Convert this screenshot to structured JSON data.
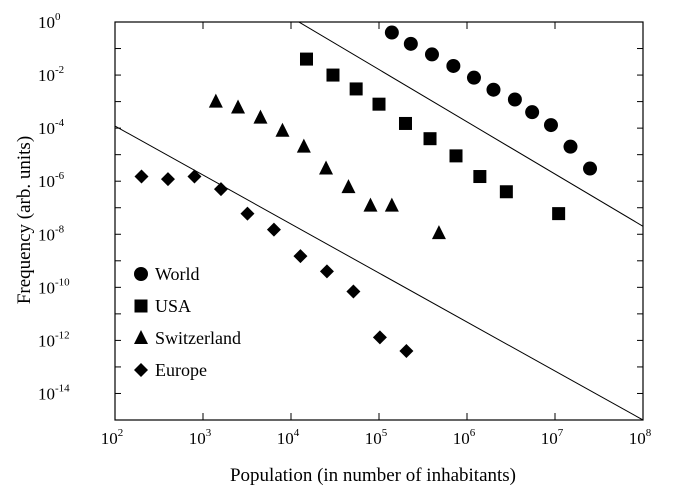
{
  "chart_data": {
    "type": "scatter",
    "title": "",
    "xlabel": "Population (in number of inhabitants)",
    "ylabel": "Frequency (arb. units)",
    "x_scale": "log",
    "y_scale": "log",
    "xlim": [
      100,
      100000000
    ],
    "ylim": [
      1e-15,
      1
    ],
    "x_ticks": [
      {
        "base": "10",
        "exp": "2"
      },
      {
        "base": "10",
        "exp": "3"
      },
      {
        "base": "10",
        "exp": "4"
      },
      {
        "base": "10",
        "exp": "5"
      },
      {
        "base": "10",
        "exp": "6"
      },
      {
        "base": "10",
        "exp": "7"
      },
      {
        "base": "10",
        "exp": "8"
      }
    ],
    "y_ticks": [
      {
        "base": "10",
        "exp": "0"
      },
      {
        "base": "10",
        "exp": "-2"
      },
      {
        "base": "10",
        "exp": "-4"
      },
      {
        "base": "10",
        "exp": "-6"
      },
      {
        "base": "10",
        "exp": "-8"
      },
      {
        "base": "10",
        "exp": "-10"
      },
      {
        "base": "10",
        "exp": "-12"
      },
      {
        "base": "10",
        "exp": "-14"
      }
    ],
    "grid": false,
    "legend": "bottom-left",
    "series": [
      {
        "name": "World",
        "marker": "circle",
        "x": [
          140000,
          230000,
          400000,
          700000,
          1200000,
          2000000,
          3500000,
          5500000,
          9000000,
          15000000,
          25000000
        ],
        "y": [
          0.4,
          0.15,
          0.06,
          0.022,
          0.008,
          0.0028,
          0.0012,
          0.0004,
          0.00013,
          2e-05,
          3e-06
        ]
      },
      {
        "name": "USA",
        "marker": "square",
        "x": [
          15000,
          30000,
          55000,
          100000,
          200000,
          380000,
          750000,
          1400000,
          2800000,
          11000000
        ],
        "y": [
          0.04,
          0.01,
          0.003,
          0.0008,
          0.00015,
          4e-05,
          9e-06,
          1.5e-06,
          4e-07,
          6e-08
        ]
      },
      {
        "name": "Switzerland",
        "marker": "triangle",
        "x": [
          1400,
          2500,
          4500,
          8000,
          14000,
          25000,
          45000,
          80000,
          140000,
          480000
        ],
        "y": [
          0.001,
          0.0006,
          0.00025,
          8e-05,
          2e-05,
          3e-06,
          6e-07,
          1.2e-07,
          1.2e-07,
          1.1e-08
        ]
      },
      {
        "name": "Europe",
        "marker": "diamond",
        "x": [
          200,
          400,
          800,
          1600,
          3200,
          6400,
          12800,
          25600,
          51200,
          102400,
          204800
        ],
        "y": [
          1.5e-06,
          1.2e-06,
          1.5e-06,
          5e-07,
          6e-08,
          1.5e-08,
          1.5e-09,
          4e-10,
          7e-11,
          1.3e-12,
          4e-13
        ]
      }
    ],
    "reference_lines": [
      {
        "x1": 10000,
        "y1": 1.5,
        "x2": 100000000,
        "y2": 2e-08
      },
      {
        "x1": 100,
        "y1": 0.00012,
        "x2": 100000000,
        "y2": 1e-15
      }
    ],
    "colors": {
      "markers": "#000000",
      "axes": "#000000",
      "background": "#ffffff"
    }
  }
}
